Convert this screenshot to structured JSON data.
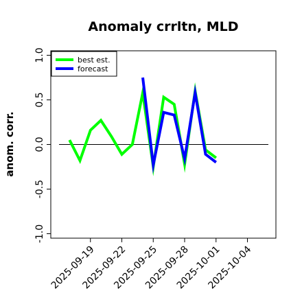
{
  "chart_data": {
    "type": "line",
    "title": "Anomaly crrltn, MLD",
    "xlabel": "",
    "ylabel": "anom. corr.",
    "x_tick_labels": [
      "2025-09-19",
      "2025-09-22",
      "2025-09-25",
      "2025-09-28",
      "2025-10-01",
      "2025-10-04"
    ],
    "x_tick_colors": [
      "#000000",
      "#000000",
      "#228B22",
      "#000000",
      "#000000",
      "#000000"
    ],
    "y_tick_labels": [
      "-1.0",
      "-0.5",
      "0.0",
      "0.5",
      "1.0"
    ],
    "y_ticks": [
      -1.0,
      -0.5,
      0.0,
      0.5,
      1.0
    ],
    "ylim": [
      -1.05,
      1.05
    ],
    "xlim": [
      "2025-09-16",
      "2025-10-06"
    ],
    "reference_line": 0.0,
    "legend": {
      "placement": "top-left"
    },
    "series": [
      {
        "name": "best est.",
        "color": "#00ff00",
        "points": [
          [
            "2025-09-17",
            0.05
          ],
          [
            "2025-09-18",
            -0.18
          ],
          [
            "2025-09-19",
            0.16
          ],
          [
            "2025-09-20",
            0.27
          ],
          [
            "2025-09-21",
            0.09
          ],
          [
            "2025-09-22",
            -0.11
          ],
          [
            "2025-09-23",
            0.0
          ],
          [
            "2025-09-24",
            0.58
          ],
          [
            "2025-09-25",
            -0.25
          ],
          [
            "2025-09-26",
            0.53
          ],
          [
            "2025-09-27",
            0.45
          ],
          [
            "2025-09-28",
            -0.22
          ],
          [
            "2025-09-29",
            0.6
          ],
          [
            "2025-09-30",
            -0.06
          ],
          [
            "2025-10-01",
            -0.15
          ]
        ]
      },
      {
        "name": "forecast",
        "color": "#0000ff",
        "points": [
          [
            "2025-09-24",
            0.75
          ],
          [
            "2025-09-25",
            -0.23
          ],
          [
            "2025-09-26",
            0.36
          ],
          [
            "2025-09-27",
            0.33
          ],
          [
            "2025-09-28",
            -0.16
          ],
          [
            "2025-09-29",
            0.58
          ],
          [
            "2025-09-30",
            -0.11
          ],
          [
            "2025-10-01",
            -0.2
          ]
        ]
      }
    ]
  }
}
